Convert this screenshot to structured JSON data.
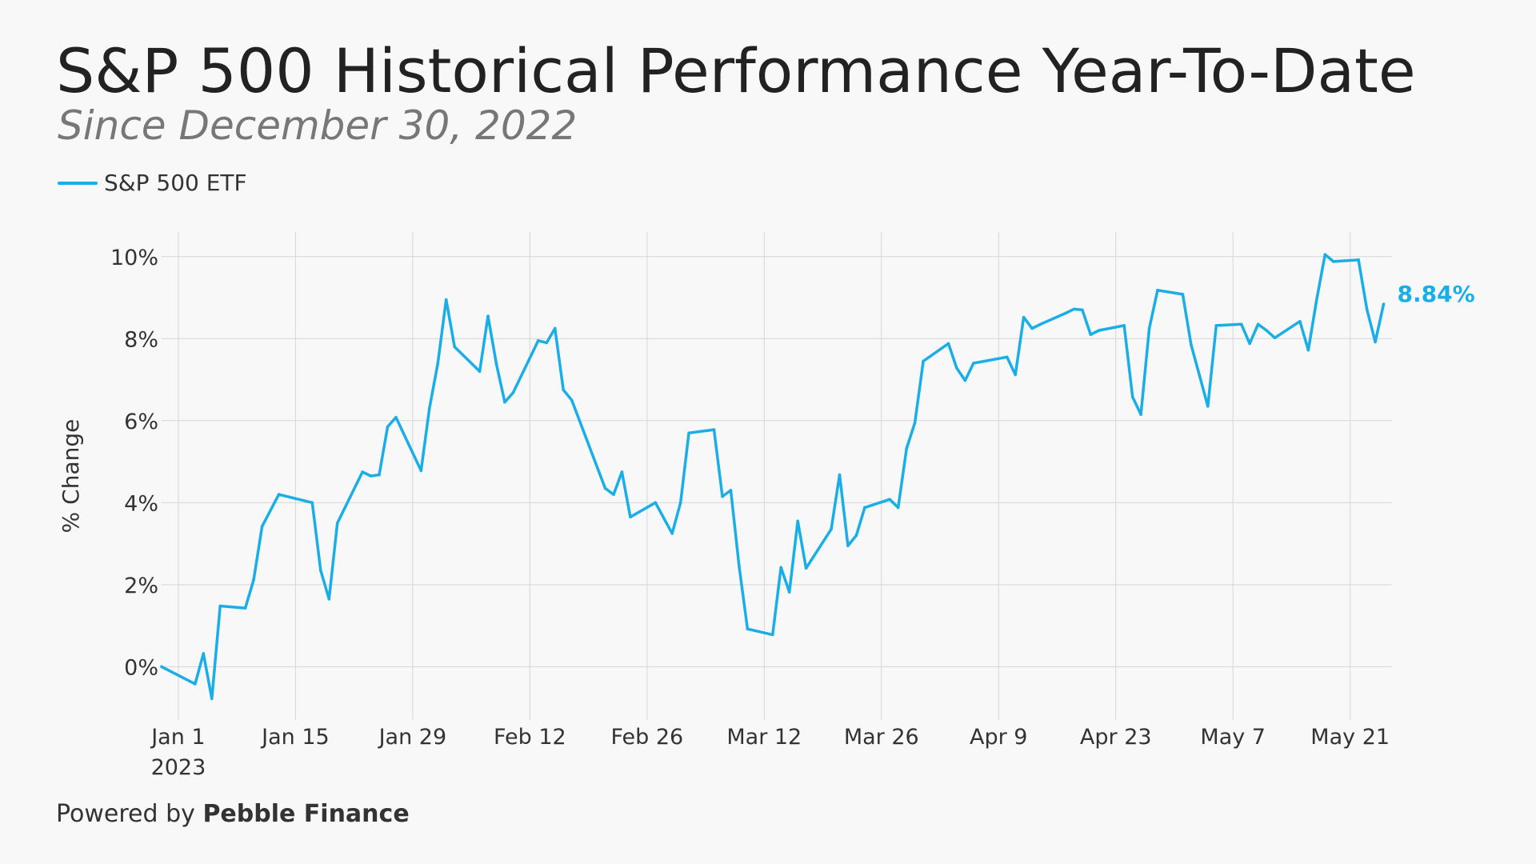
{
  "title": "S&P 500 Historical Performance Year-To-Date",
  "subtitle": "Since December 30, 2022",
  "footer": {
    "prefix": "Powered by",
    "brand": "Pebble Finance"
  },
  "colors": {
    "series": "#1aaee8",
    "grid": "#d6d6d6",
    "text": "#333333"
  },
  "chart_data": {
    "type": "line",
    "ylabel": "% Change",
    "ylim": [
      -1.3,
      10.6
    ],
    "yticks": [
      0,
      2,
      4,
      6,
      8,
      10
    ],
    "ytick_labels": [
      "0%",
      "2%",
      "4%",
      "6%",
      "8%",
      "10%"
    ],
    "xlim": [
      "2022-12-30",
      "2023-05-26"
    ],
    "xticks": [
      "2023-01-01",
      "2023-01-15",
      "2023-01-29",
      "2023-02-12",
      "2023-02-26",
      "2023-03-12",
      "2023-03-26",
      "2023-04-09",
      "2023-04-23",
      "2023-05-07",
      "2023-05-21"
    ],
    "xtick_labels": [
      "Jan 1",
      "Jan 15",
      "Jan 29",
      "Feb 12",
      "Feb 26",
      "Mar 12",
      "Mar 26",
      "Apr 9",
      "Apr 23",
      "May 7",
      "May 21"
    ],
    "xtick_sublabel": "2023",
    "grid": true,
    "legend_position": "top-left",
    "series": [
      {
        "name": "S&P 500 ETF",
        "end_label": "8.84%",
        "points": [
          [
            "2022-12-30",
            0.0
          ],
          [
            "2023-01-03",
            -0.42
          ],
          [
            "2023-01-04",
            0.32
          ],
          [
            "2023-01-05",
            -0.78
          ],
          [
            "2023-01-06",
            1.48
          ],
          [
            "2023-01-09",
            1.43
          ],
          [
            "2023-01-10",
            2.12
          ],
          [
            "2023-01-11",
            3.42
          ],
          [
            "2023-01-13",
            4.2
          ],
          [
            "2023-01-17",
            4.0
          ],
          [
            "2023-01-18",
            2.35
          ],
          [
            "2023-01-19",
            1.65
          ],
          [
            "2023-01-20",
            3.5
          ],
          [
            "2023-01-23",
            4.75
          ],
          [
            "2023-01-24",
            4.65
          ],
          [
            "2023-01-25",
            4.68
          ],
          [
            "2023-01-26",
            5.85
          ],
          [
            "2023-01-27",
            6.08
          ],
          [
            "2023-01-30",
            4.78
          ],
          [
            "2023-01-31",
            6.3
          ],
          [
            "2023-02-01",
            7.4
          ],
          [
            "2023-02-02",
            8.95
          ],
          [
            "2023-02-03",
            7.8
          ],
          [
            "2023-02-06",
            7.2
          ],
          [
            "2023-02-07",
            8.55
          ],
          [
            "2023-02-08",
            7.38
          ],
          [
            "2023-02-09",
            6.45
          ],
          [
            "2023-02-10",
            6.68
          ],
          [
            "2023-02-13",
            7.95
          ],
          [
            "2023-02-14",
            7.9
          ],
          [
            "2023-02-15",
            8.25
          ],
          [
            "2023-02-16",
            6.75
          ],
          [
            "2023-02-17",
            6.5
          ],
          [
            "2023-02-21",
            4.35
          ],
          [
            "2023-02-22",
            4.2
          ],
          [
            "2023-02-23",
            4.75
          ],
          [
            "2023-02-24",
            3.65
          ],
          [
            "2023-02-27",
            4.0
          ],
          [
            "2023-02-28",
            3.62
          ],
          [
            "2023-03-01",
            3.25
          ],
          [
            "2023-03-02",
            4.0
          ],
          [
            "2023-03-03",
            5.7
          ],
          [
            "2023-03-06",
            5.78
          ],
          [
            "2023-03-07",
            4.15
          ],
          [
            "2023-03-08",
            4.3
          ],
          [
            "2023-03-09",
            2.45
          ],
          [
            "2023-03-10",
            0.92
          ],
          [
            "2023-03-13",
            0.78
          ],
          [
            "2023-03-14",
            2.42
          ],
          [
            "2023-03-15",
            1.82
          ],
          [
            "2023-03-16",
            3.55
          ],
          [
            "2023-03-17",
            2.4
          ],
          [
            "2023-03-20",
            3.35
          ],
          [
            "2023-03-21",
            4.68
          ],
          [
            "2023-03-22",
            2.95
          ],
          [
            "2023-03-23",
            3.2
          ],
          [
            "2023-03-24",
            3.88
          ],
          [
            "2023-03-27",
            4.08
          ],
          [
            "2023-03-28",
            3.88
          ],
          [
            "2023-03-29",
            5.32
          ],
          [
            "2023-03-30",
            5.95
          ],
          [
            "2023-03-31",
            7.45
          ],
          [
            "2023-04-03",
            7.88
          ],
          [
            "2023-04-04",
            7.28
          ],
          [
            "2023-04-05",
            6.98
          ],
          [
            "2023-04-06",
            7.4
          ],
          [
            "2023-04-10",
            7.55
          ],
          [
            "2023-04-11",
            7.12
          ],
          [
            "2023-04-12",
            8.52
          ],
          [
            "2023-04-13",
            8.25
          ],
          [
            "2023-04-14",
            8.35
          ],
          [
            "2023-04-17",
            8.62
          ],
          [
            "2023-04-18",
            8.72
          ],
          [
            "2023-04-19",
            8.7
          ],
          [
            "2023-04-20",
            8.1
          ],
          [
            "2023-04-21",
            8.2
          ],
          [
            "2023-04-24",
            8.32
          ],
          [
            "2023-04-25",
            6.58
          ],
          [
            "2023-04-26",
            6.15
          ],
          [
            "2023-04-27",
            8.25
          ],
          [
            "2023-04-28",
            9.18
          ],
          [
            "2023-05-01",
            9.08
          ],
          [
            "2023-05-02",
            7.85
          ],
          [
            "2023-05-03",
            7.1
          ],
          [
            "2023-05-04",
            6.35
          ],
          [
            "2023-05-05",
            8.32
          ],
          [
            "2023-05-08",
            8.35
          ],
          [
            "2023-05-09",
            7.88
          ],
          [
            "2023-05-10",
            8.35
          ],
          [
            "2023-05-11",
            8.2
          ],
          [
            "2023-05-12",
            8.02
          ],
          [
            "2023-05-15",
            8.42
          ],
          [
            "2023-05-16",
            7.72
          ],
          [
            "2023-05-17",
            8.95
          ],
          [
            "2023-05-18",
            10.05
          ],
          [
            "2023-05-19",
            9.88
          ],
          [
            "2023-05-22",
            9.92
          ],
          [
            "2023-05-23",
            8.72
          ],
          [
            "2023-05-24",
            7.92
          ],
          [
            "2023-05-25",
            8.84
          ]
        ]
      }
    ]
  }
}
